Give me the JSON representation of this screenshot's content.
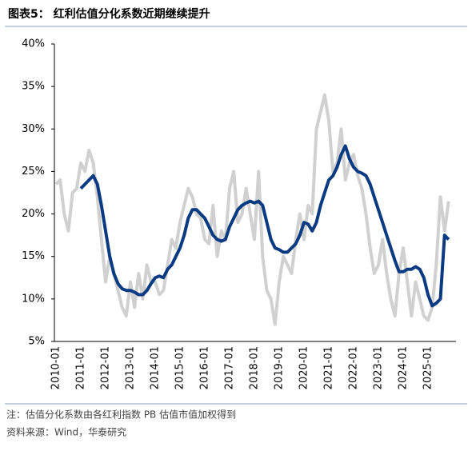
{
  "chart_data": {
    "type": "line",
    "title": "图表5： 红利估值分化系数近期继续提升",
    "notes": [
      "注：估值分化系数由各红利指数 PB 估值市值加权得到",
      "资料来源：Wind，华泰研究"
    ],
    "categories": [
      "2010-01",
      null,
      null,
      null,
      null,
      null,
      "2011-01",
      null,
      null,
      null,
      null,
      null,
      "2012-01",
      null,
      null,
      null,
      null,
      null,
      "2013-01",
      null,
      null,
      null,
      null,
      null,
      "2014-01",
      null,
      null,
      null,
      null,
      null,
      "2015-01",
      null,
      null,
      null,
      null,
      null,
      "2016-01",
      null,
      null,
      null,
      null,
      null,
      "2017-01",
      null,
      null,
      null,
      null,
      null,
      "2018-01",
      null,
      null,
      null,
      null,
      null,
      "2019-01",
      null,
      null,
      null,
      null,
      null,
      "2020-01",
      null,
      null,
      null,
      null,
      null,
      "2021-01",
      null,
      null,
      null,
      null,
      null,
      "2022-01",
      null,
      null,
      null,
      null,
      null,
      "2023-01",
      null,
      null,
      null,
      null,
      null,
      "2024-01",
      null,
      null,
      null,
      null,
      null,
      "2025-01",
      null,
      null,
      null,
      null,
      null
    ],
    "series": [
      {
        "color": "#d0d0d0",
        "width": 4,
        "values": [
          23.5,
          24,
          20,
          18,
          22.5,
          23,
          26,
          25,
          27.5,
          26,
          22,
          17,
          12,
          15,
          13,
          11,
          9,
          8,
          12,
          9,
          13,
          10,
          14,
          12,
          12,
          10.5,
          11,
          14,
          17,
          16,
          19,
          21,
          23,
          22,
          20,
          19.5,
          17,
          16.5,
          21,
          15,
          18,
          17,
          23,
          25,
          19,
          20,
          23,
          20,
          17,
          25,
          15,
          11,
          10,
          7,
          12,
          15,
          14,
          13,
          17,
          20,
          17,
          21,
          20,
          30,
          32,
          34,
          31,
          25,
          26,
          30,
          24,
          26,
          27,
          24.5,
          23,
          20,
          16,
          13,
          14,
          17,
          13,
          10,
          8,
          13,
          16,
          12,
          8,
          12,
          10,
          8,
          7.5,
          9,
          14,
          22,
          18,
          21.5
        ]
      },
      {
        "color": "#0a3a82",
        "width": 4,
        "values": [
          null,
          null,
          null,
          null,
          null,
          null,
          23,
          23.5,
          24,
          24.5,
          23.5,
          21,
          18,
          15,
          13,
          11.8,
          11.2,
          11,
          11,
          10.8,
          10.5,
          10.5,
          11,
          11.8,
          12.5,
          12.7,
          12.5,
          13.5,
          14,
          15,
          16,
          17.5,
          19.5,
          20.5,
          20.5,
          20,
          19.5,
          18.5,
          17.5,
          17,
          16.8,
          17,
          18.5,
          19.5,
          20.5,
          21,
          21.3,
          21.5,
          21.3,
          21.5,
          21,
          19,
          17,
          16,
          15.8,
          15.5,
          15.5,
          16,
          16.5,
          17.5,
          19,
          18.8,
          18,
          19,
          21,
          22.5,
          24,
          24.5,
          25.5,
          27,
          28,
          26.5,
          25.5,
          25,
          24.8,
          24.5,
          23.5,
          22,
          20.5,
          19,
          17.5,
          16,
          14.5,
          13.2,
          13.2,
          13.5,
          13.5,
          13.8,
          13.5,
          12.5,
          10.5,
          9.2,
          9.5,
          10,
          17.5,
          17
        ]
      }
    ],
    "ylim": [
      5,
      40
    ],
    "yticks": [
      {
        "value": 5,
        "label": "5%"
      },
      {
        "value": 10,
        "label": "10%"
      },
      {
        "value": 15,
        "label": "15%"
      },
      {
        "value": 20,
        "label": "20%"
      },
      {
        "value": 25,
        "label": "25%"
      },
      {
        "value": 30,
        "label": "30%"
      },
      {
        "value": 35,
        "label": "35%"
      },
      {
        "value": 40,
        "label": "40%"
      }
    ]
  }
}
